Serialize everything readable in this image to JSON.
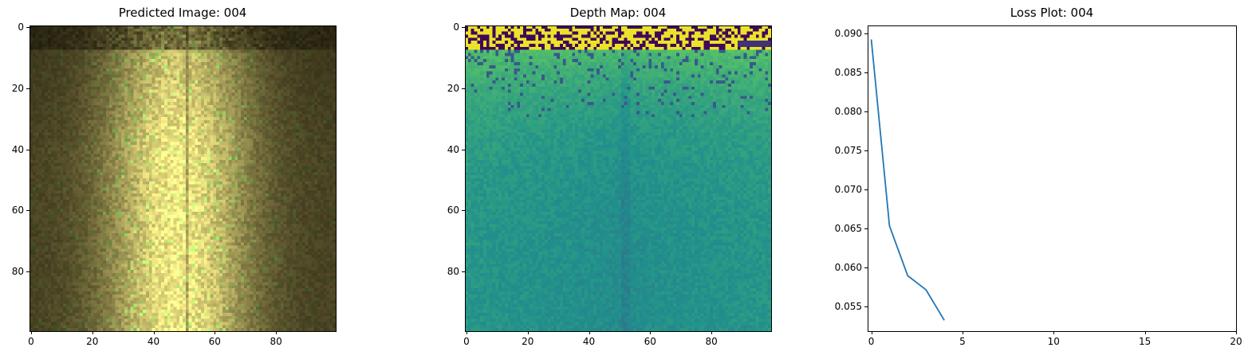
{
  "chart_data": [
    {
      "type": "heatmap",
      "title": "Predicted Image: 004",
      "colormap": "rgb",
      "grid_size": 100,
      "xticks": [
        "0",
        "20",
        "40",
        "60",
        "80"
      ],
      "yticks": [
        "0",
        "20",
        "40",
        "60",
        "80"
      ],
      "xlim": [
        -0.5,
        99.5
      ],
      "ylim": [
        99.5,
        -0.5
      ]
    },
    {
      "type": "heatmap",
      "title": "Depth Map: 004",
      "colormap": "viridis",
      "grid_size": 100,
      "xticks": [
        "0",
        "20",
        "40",
        "60",
        "80"
      ],
      "yticks": [
        "0",
        "20",
        "40",
        "60",
        "80"
      ],
      "xlim": [
        -0.5,
        99.5
      ],
      "ylim": [
        99.5,
        -0.5
      ]
    },
    {
      "type": "line",
      "title": "Loss Plot: 004",
      "x": [
        0,
        1,
        2,
        3,
        4
      ],
      "series": [
        {
          "values": [
            0.0892,
            0.0653,
            0.0589,
            0.0571,
            0.0532
          ],
          "color": "#1f77b4"
        }
      ],
      "xlim": [
        -0.2,
        20
      ],
      "ylim": [
        0.0518,
        0.091
      ],
      "xticks": [
        "0",
        "5",
        "10",
        "15",
        "20"
      ],
      "yticks": [
        "0.055",
        "0.060",
        "0.065",
        "0.070",
        "0.075",
        "0.080",
        "0.085",
        "0.090"
      ],
      "grid": false
    }
  ]
}
